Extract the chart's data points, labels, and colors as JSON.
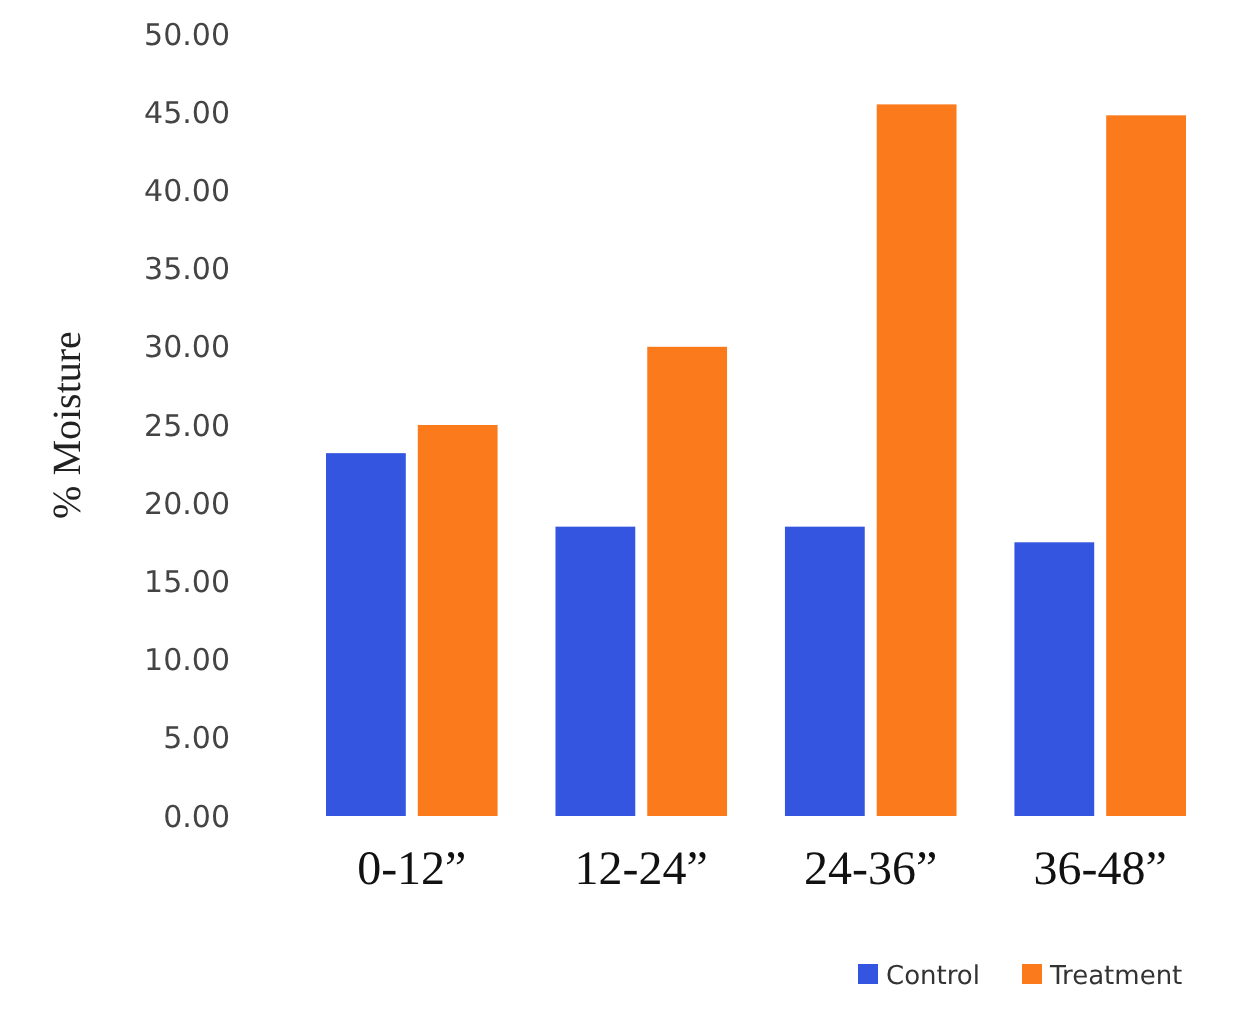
{
  "chart_data": {
    "type": "bar",
    "ylabel": "% Moisture",
    "categories": [
      "0-12”",
      "12-24”",
      "24-36”",
      "36-48”"
    ],
    "series": [
      {
        "name": "Control",
        "color": "#3355e0",
        "values": [
          23.2,
          18.5,
          18.5,
          17.5
        ]
      },
      {
        "name": "Treatment",
        "color": "#fb7a1c",
        "values": [
          25.0,
          30.0,
          45.5,
          44.8
        ]
      }
    ],
    "ylim": [
      0,
      50
    ],
    "yticks": [
      {
        "value": 0,
        "label": "0.00"
      },
      {
        "value": 5,
        "label": "5.00"
      },
      {
        "value": 10,
        "label": "10.00"
      },
      {
        "value": 15,
        "label": "15.00"
      },
      {
        "value": 20,
        "label": "20.00"
      },
      {
        "value": 25,
        "label": "25.00"
      },
      {
        "value": 30,
        "label": "30.00"
      },
      {
        "value": 35,
        "label": "35.00"
      },
      {
        "value": 40,
        "label": "40.00"
      },
      {
        "value": 45,
        "label": "45.00"
      },
      {
        "value": 50,
        "label": "50.00"
      }
    ],
    "legend": "bottom right"
  }
}
